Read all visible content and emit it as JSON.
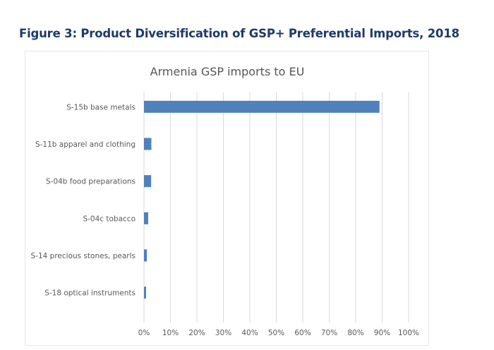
{
  "figure_title": "Figure 3: Product Diversification of GSP+ Preferential Imports, 2018",
  "chart_data": {
    "type": "bar",
    "orientation": "horizontal",
    "title": "Armenia GSP imports to EU",
    "categories": [
      "S-15b base metals",
      "S-11b apparel and clothing",
      "S-04b food preparations",
      "S-04c tobacco",
      "S-14 precious stones, pearls",
      "S-18 optical instruments"
    ],
    "values": [
      89,
      2.8,
      2.7,
      1.6,
      1.1,
      0.8
    ],
    "unit": "%",
    "xlabel": "",
    "ylabel": "",
    "xlim": [
      0,
      100
    ],
    "xticks": [
      0,
      10,
      20,
      30,
      40,
      50,
      60,
      70,
      80,
      90,
      100
    ],
    "xtick_labels": [
      "0%",
      "10%",
      "20%",
      "30%",
      "40%",
      "50%",
      "60%",
      "70%",
      "80%",
      "90%",
      "100%"
    ],
    "grid": true,
    "legend": "none",
    "bar_color": "#4f81bd",
    "grid_color": "#d9d9d9"
  }
}
